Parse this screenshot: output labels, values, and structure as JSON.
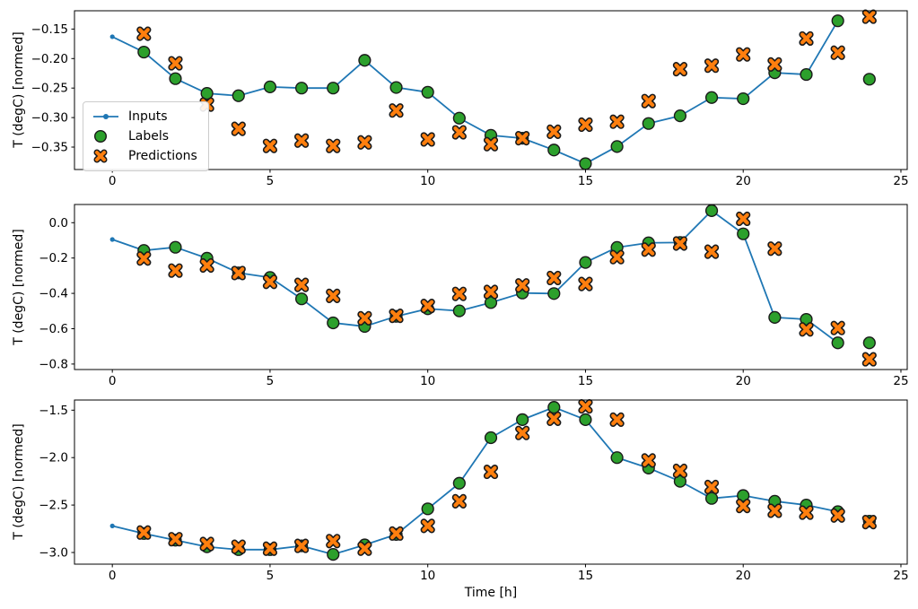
{
  "figure": {
    "xlabel": "Time [h]",
    "ylabel": "T (degC) [normed]",
    "legend": {
      "inputs": "Inputs",
      "labels": "Labels",
      "predictions": "Predictions"
    },
    "colors": {
      "inputs": "#1f77b4",
      "labels": "#2ca02c",
      "predictions": "#ff7f0e",
      "marker_edge": "#1a1a1a",
      "axes": "#000000"
    }
  },
  "chart_data": [
    {
      "type": "line",
      "ylabel": "T (degC) [normed]",
      "xlim": [
        -1.2,
        25.2
      ],
      "ylim": [
        -0.388,
        -0.119
      ],
      "xticks": [
        0,
        5,
        10,
        15,
        20,
        25
      ],
      "xtick_labels": [
        "0",
        "5",
        "10",
        "15",
        "20",
        "25"
      ],
      "ytick_values": [
        -0.15,
        -0.2,
        -0.25,
        -0.3,
        -0.35
      ],
      "ytick_labels": [
        "−0.15",
        "−0.20",
        "−0.25",
        "−0.30",
        "−0.35"
      ],
      "grid": false,
      "legend_position": "center-left",
      "series": [
        {
          "name": "Inputs",
          "style": "line",
          "color": "#1f77b4",
          "x": [
            0,
            1,
            2,
            3,
            4,
            5,
            6,
            7,
            8,
            9,
            10,
            11,
            12,
            13,
            14,
            15,
            16,
            17,
            18,
            19,
            20,
            21,
            22,
            23
          ],
          "y": [
            -0.163,
            -0.189,
            -0.234,
            -0.259,
            -0.263,
            -0.248,
            -0.25,
            -0.25,
            -0.203,
            -0.249,
            -0.257,
            -0.301,
            -0.33,
            -0.335,
            -0.355,
            -0.378,
            -0.349,
            -0.31,
            -0.297,
            -0.266,
            -0.268,
            -0.224,
            -0.227,
            -0.136
          ]
        },
        {
          "name": "Labels",
          "style": "circle",
          "color": "#2ca02c",
          "x": [
            1,
            2,
            3,
            4,
            5,
            6,
            7,
            8,
            9,
            10,
            11,
            12,
            13,
            14,
            15,
            16,
            17,
            18,
            19,
            20,
            21,
            22,
            23,
            24
          ],
          "y": [
            -0.189,
            -0.234,
            -0.259,
            -0.263,
            -0.248,
            -0.25,
            -0.25,
            -0.203,
            -0.249,
            -0.257,
            -0.301,
            -0.33,
            -0.335,
            -0.355,
            -0.378,
            -0.349,
            -0.31,
            -0.297,
            -0.266,
            -0.268,
            -0.224,
            -0.227,
            -0.136,
            -0.235
          ]
        },
        {
          "name": "Predictions",
          "style": "X",
          "color": "#ff7f0e",
          "x": [
            1,
            2,
            3,
            4,
            5,
            6,
            7,
            8,
            9,
            10,
            11,
            12,
            13,
            14,
            15,
            16,
            17,
            18,
            19,
            20,
            21,
            22,
            23,
            24
          ],
          "y": [
            -0.158,
            -0.208,
            -0.278,
            -0.319,
            -0.348,
            -0.339,
            -0.348,
            -0.342,
            -0.288,
            -0.337,
            -0.325,
            -0.345,
            -0.335,
            -0.324,
            -0.312,
            -0.307,
            -0.272,
            -0.218,
            -0.212,
            -0.193,
            -0.21,
            -0.166,
            -0.19,
            -0.129
          ]
        }
      ]
    },
    {
      "type": "line",
      "ylabel": "T (degC) [normed]",
      "xlim": [
        -1.2,
        25.2
      ],
      "ylim": [
        -0.831,
        0.103
      ],
      "xticks": [
        0,
        5,
        10,
        15,
        20,
        25
      ],
      "xtick_labels": [
        "0",
        "5",
        "10",
        "15",
        "20",
        "25"
      ],
      "ytick_values": [
        0.0,
        -0.2,
        -0.4,
        -0.6,
        -0.8
      ],
      "ytick_labels": [
        "0.0",
        "−0.2",
        "−0.4",
        "−0.6",
        "−0.8"
      ],
      "grid": false,
      "series": [
        {
          "name": "Inputs",
          "style": "line",
          "color": "#1f77b4",
          "x": [
            0,
            1,
            2,
            3,
            4,
            5,
            6,
            7,
            8,
            9,
            10,
            11,
            12,
            13,
            14,
            15,
            16,
            17,
            18,
            19,
            20,
            21,
            22,
            23
          ],
          "y": [
            -0.095,
            -0.157,
            -0.139,
            -0.201,
            -0.284,
            -0.31,
            -0.431,
            -0.567,
            -0.587,
            -0.53,
            -0.487,
            -0.499,
            -0.452,
            -0.398,
            -0.401,
            -0.225,
            -0.14,
            -0.114,
            -0.112,
            0.068,
            -0.063,
            -0.536,
            -0.547,
            -0.68
          ]
        },
        {
          "name": "Labels",
          "style": "circle",
          "color": "#2ca02c",
          "x": [
            1,
            2,
            3,
            4,
            5,
            6,
            7,
            8,
            9,
            10,
            11,
            12,
            13,
            14,
            15,
            16,
            17,
            18,
            19,
            20,
            21,
            22,
            23,
            24
          ],
          "y": [
            -0.157,
            -0.139,
            -0.201,
            -0.284,
            -0.31,
            -0.431,
            -0.567,
            -0.587,
            -0.53,
            -0.487,
            -0.499,
            -0.452,
            -0.398,
            -0.401,
            -0.225,
            -0.14,
            -0.114,
            -0.112,
            0.068,
            -0.063,
            -0.536,
            -0.547,
            -0.68,
            -0.68
          ]
        },
        {
          "name": "Predictions",
          "style": "X",
          "color": "#ff7f0e",
          "x": [
            1,
            2,
            3,
            4,
            5,
            6,
            7,
            8,
            9,
            10,
            11,
            12,
            13,
            14,
            15,
            16,
            17,
            18,
            19,
            20,
            21,
            22,
            23,
            24
          ],
          "y": [
            -0.203,
            -0.271,
            -0.242,
            -0.285,
            -0.335,
            -0.352,
            -0.414,
            -0.541,
            -0.527,
            -0.471,
            -0.403,
            -0.392,
            -0.355,
            -0.313,
            -0.347,
            -0.195,
            -0.152,
            -0.118,
            -0.164,
            0.022,
            -0.147,
            -0.604,
            -0.596,
            -0.773
          ]
        }
      ]
    },
    {
      "type": "line",
      "ylabel": "T (degC) [normed]",
      "xlabel": "Time [h]",
      "xlim": [
        -1.2,
        25.2
      ],
      "ylim": [
        -3.123,
        -1.393
      ],
      "xticks": [
        0,
        5,
        10,
        15,
        20,
        25
      ],
      "xtick_labels": [
        "0",
        "5",
        "10",
        "15",
        "20",
        "25"
      ],
      "ytick_values": [
        -1.5,
        -2.0,
        -2.5,
        -3.0
      ],
      "ytick_labels": [
        "−1.5",
        "−2.0",
        "−2.5",
        "−3.0"
      ],
      "grid": false,
      "series": [
        {
          "name": "Inputs",
          "style": "line",
          "color": "#1f77b4",
          "x": [
            0,
            1,
            2,
            3,
            4,
            5,
            6,
            7,
            8,
            9,
            10,
            11,
            12,
            13,
            14,
            15,
            16,
            17,
            18,
            19,
            20,
            21,
            22,
            23
          ],
          "y": [
            -2.72,
            -2.8,
            -2.87,
            -2.94,
            -2.97,
            -2.97,
            -2.93,
            -3.02,
            -2.92,
            -2.81,
            -2.54,
            -2.27,
            -1.79,
            -1.6,
            -1.47,
            -1.6,
            -2.0,
            -2.11,
            -2.25,
            -2.43,
            -2.4,
            -2.46,
            -2.5,
            -2.57
          ]
        },
        {
          "name": "Labels",
          "style": "circle",
          "color": "#2ca02c",
          "x": [
            1,
            2,
            3,
            4,
            5,
            6,
            7,
            8,
            9,
            10,
            11,
            12,
            13,
            14,
            15,
            16,
            17,
            18,
            19,
            20,
            21,
            22,
            23,
            24
          ],
          "y": [
            -2.8,
            -2.87,
            -2.94,
            -2.97,
            -2.97,
            -2.93,
            -3.02,
            -2.92,
            -2.81,
            -2.54,
            -2.27,
            -1.79,
            -1.6,
            -1.47,
            -1.6,
            -2.0,
            -2.11,
            -2.25,
            -2.43,
            -2.4,
            -2.46,
            -2.5,
            -2.57,
            -2.67
          ]
        },
        {
          "name": "Predictions",
          "style": "X",
          "color": "#ff7f0e",
          "x": [
            1,
            2,
            3,
            4,
            5,
            6,
            7,
            8,
            9,
            10,
            11,
            12,
            13,
            14,
            15,
            16,
            17,
            18,
            19,
            20,
            21,
            22,
            23,
            24
          ],
          "y": [
            -2.79,
            -2.86,
            -2.91,
            -2.94,
            -2.96,
            -2.93,
            -2.88,
            -2.96,
            -2.8,
            -2.72,
            -2.46,
            -2.15,
            -1.74,
            -1.59,
            -1.46,
            -1.6,
            -2.03,
            -2.14,
            -2.31,
            -2.51,
            -2.56,
            -2.58,
            -2.61,
            -2.68
          ]
        }
      ]
    }
  ]
}
